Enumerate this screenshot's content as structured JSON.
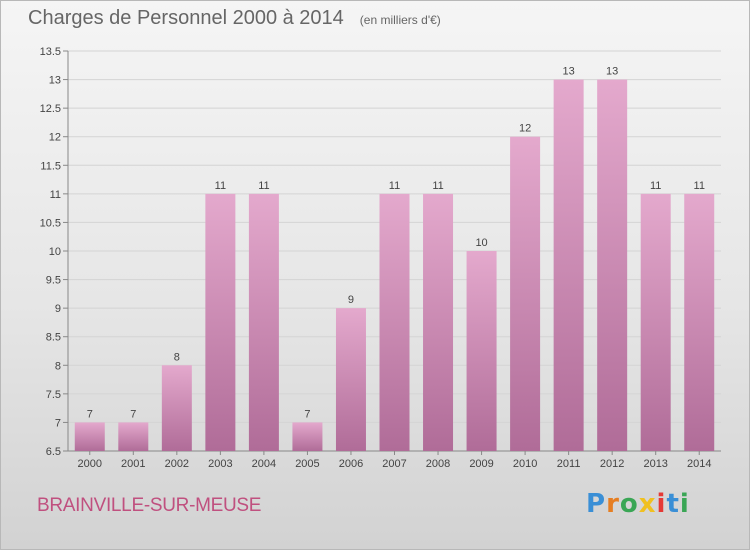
{
  "title": "Charges de Personnel 2000 à 2014",
  "subtitle": "(en milliers d'€)",
  "city": "BRAINVILLE-SUR-MEUSE",
  "logo": {
    "text": "Proxiti",
    "letter_colors": [
      "#3a8fd6",
      "#e67e22",
      "#3aa655",
      "#f0c020",
      "#e53935",
      "#3a8fd6",
      "#3aa655"
    ]
  },
  "colors": {
    "bar_top": "#e4a9cd",
    "bar_bottom": "#b06c98",
    "city": "#c0507f"
  },
  "chart_data": {
    "type": "bar",
    "categories": [
      "2000",
      "2001",
      "2002",
      "2003",
      "2004",
      "2005",
      "2006",
      "2007",
      "2008",
      "2009",
      "2010",
      "2011",
      "2012",
      "2013",
      "2014"
    ],
    "values": [
      7,
      7,
      8,
      11,
      11,
      7,
      9,
      11,
      11,
      10,
      12,
      13,
      13,
      11,
      11
    ],
    "value_labels": [
      "7",
      "7",
      "8",
      "11",
      "11",
      "7",
      "9",
      "11",
      "11",
      "10",
      "12",
      "13",
      "13",
      "11",
      "11"
    ],
    "ylim": [
      6.5,
      13.5
    ],
    "y_ticks": [
      6.5,
      7,
      7.5,
      8,
      8.5,
      9,
      9.5,
      10,
      10.5,
      11,
      11.5,
      12,
      12.5,
      13,
      13.5
    ],
    "y_tick_labels": [
      "6.5",
      "7",
      "7.5",
      "8",
      "8.5",
      "9",
      "9.5",
      "10",
      "10.5",
      "11",
      "11.5",
      "12",
      "12.5",
      "13",
      "13.5"
    ],
    "grid": true
  }
}
